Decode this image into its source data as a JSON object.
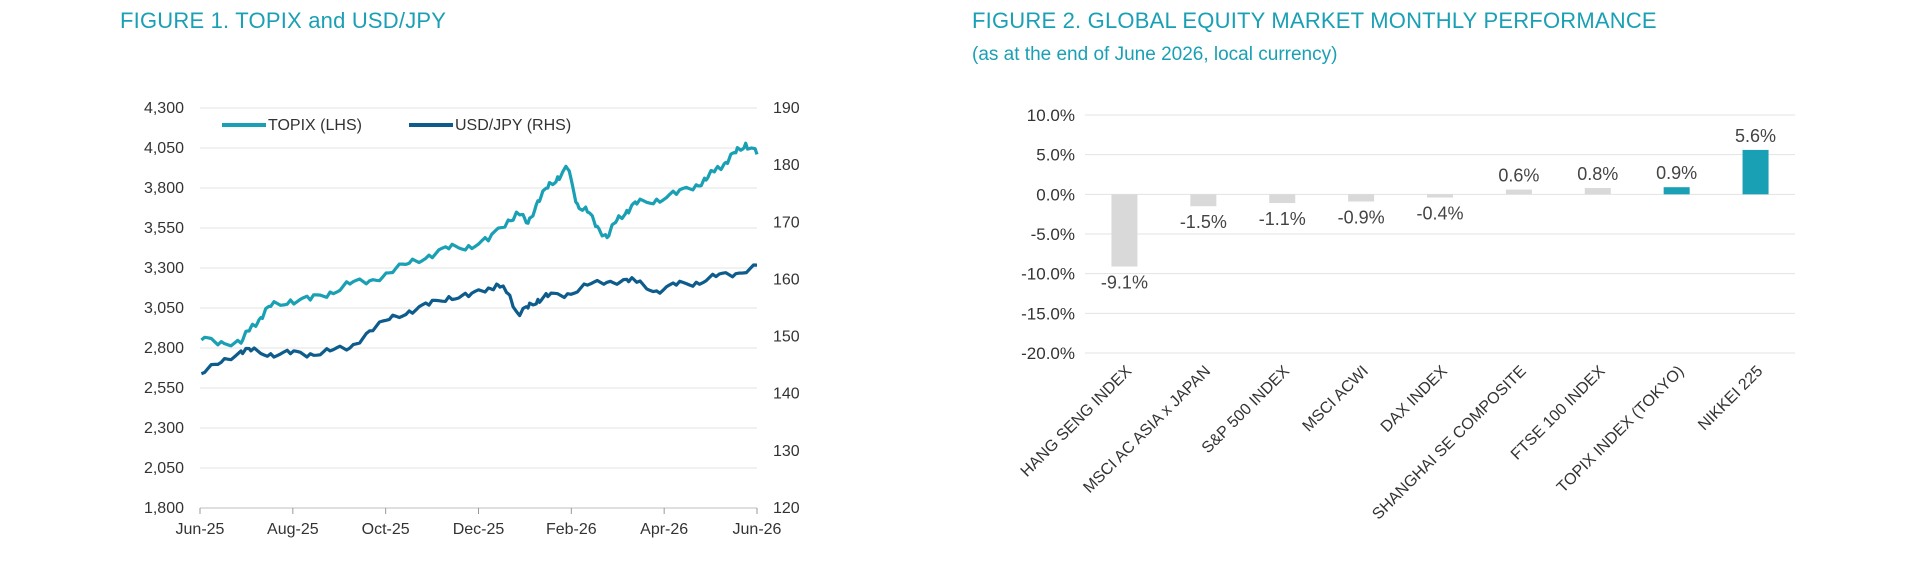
{
  "figure1": {
    "title": "FIGURE 1. TOPIX and USD/JPY",
    "chart_data": {
      "type": "line",
      "title": "FIGURE 1. TOPIX and USD/JPY",
      "x_ticks": [
        "Jun-25",
        "Aug-25",
        "Oct-25",
        "Dec-25",
        "Feb-26",
        "Apr-26",
        "Jun-26"
      ],
      "y_left_ticks": [
        "4,300",
        "4,050",
        "3,800",
        "3,550",
        "3,300",
        "3,050",
        "2,800",
        "2,550",
        "2,300",
        "2,050",
        "1,800"
      ],
      "y_right_ticks": [
        "190",
        "180",
        "170",
        "160",
        "150",
        "140",
        "130",
        "120"
      ],
      "ylim_left": [
        1800,
        4300
      ],
      "ylim_right": [
        120,
        190
      ],
      "xlim": [
        "2025-06",
        "2026-06"
      ],
      "grid": "horizontal",
      "legend_position": "top-left",
      "series": [
        {
          "name": "TOPIX (LHS)",
          "axis": "left",
          "color": "#1aa0b4",
          "x": [
            "2025-06-02",
            "2025-06-16",
            "2025-06-30",
            "2025-07-07",
            "2025-07-14",
            "2025-07-21",
            "2025-08-04",
            "2025-08-18",
            "2025-09-01",
            "2025-09-15",
            "2025-09-29",
            "2025-10-13",
            "2025-10-27",
            "2025-11-10",
            "2025-11-24",
            "2025-12-08",
            "2025-12-22",
            "2026-01-05",
            "2026-01-12",
            "2026-01-19",
            "2026-01-26",
            "2026-02-02",
            "2026-02-09",
            "2026-02-16",
            "2026-02-23",
            "2026-03-02",
            "2026-03-09",
            "2026-03-16",
            "2026-03-23",
            "2026-03-30",
            "2026-04-06",
            "2026-04-20",
            "2026-05-04",
            "2026-05-18",
            "2026-05-25",
            "2026-06-01",
            "2026-06-08",
            "2026-06-15",
            "2026-06-22",
            "2026-06-30"
          ],
          "values": [
            2850,
            2840,
            2830,
            2930,
            2990,
            3060,
            3100,
            3100,
            3150,
            3200,
            3220,
            3270,
            3330,
            3380,
            3420,
            3440,
            3470,
            3600,
            3640,
            3580,
            3720,
            3800,
            3870,
            3920,
            3700,
            3650,
            3560,
            3490,
            3600,
            3660,
            3700,
            3730,
            3760,
            3820,
            3850,
            3920,
            3960,
            4020,
            4080,
            4010
          ]
        },
        {
          "name": "USD/JPY (RHS)",
          "axis": "right",
          "color": "#0d5c8c",
          "x": [
            "2025-06-02",
            "2025-06-16",
            "2025-06-30",
            "2025-07-07",
            "2025-07-21",
            "2025-08-04",
            "2025-08-18",
            "2025-09-01",
            "2025-09-15",
            "2025-09-29",
            "2025-10-13",
            "2025-10-27",
            "2025-11-10",
            "2025-11-24",
            "2025-12-08",
            "2025-12-22",
            "2025-12-29",
            "2026-01-05",
            "2026-01-12",
            "2026-01-19",
            "2026-01-26",
            "2026-02-02",
            "2026-02-16",
            "2026-03-02",
            "2026-03-16",
            "2026-03-30",
            "2026-04-06",
            "2026-04-20",
            "2026-05-04",
            "2026-05-18",
            "2026-06-01",
            "2026-06-15",
            "2026-06-30"
          ],
          "values": [
            143.5,
            145.5,
            147.5,
            147.5,
            147.0,
            147.0,
            147.0,
            147.5,
            148.0,
            151.0,
            153.0,
            154.5,
            155.5,
            157.0,
            157.0,
            158.5,
            159.0,
            157.5,
            154.0,
            155.0,
            156.5,
            157.0,
            157.5,
            159.0,
            159.5,
            160.0,
            159.5,
            158.0,
            159.0,
            159.5,
            160.5,
            161.0,
            162.5
          ]
        }
      ]
    }
  },
  "figure2": {
    "title": "FIGURE 2. GLOBAL EQUITY MARKET MONTHLY PERFORMANCE",
    "subtitle": "(as at the end of June 2026, local currency)",
    "chart_data": {
      "type": "bar",
      "title": "FIGURE 2. GLOBAL EQUITY MARKET MONTHLY PERFORMANCE",
      "subtitle": "(as at the end of June 2026, local currency)",
      "categories": [
        "HANG SENG INDEX",
        "MSCI AC ASIA x JAPAN",
        "S&P 500 INDEX",
        "MSCI ACWI",
        "DAX INDEX",
        "SHANGHAI SE COMPOSITE",
        "FTSE 100 INDEX",
        "TOPIX INDEX (TOKYO)",
        "NIKKEI 225"
      ],
      "values": [
        -9.1,
        -1.5,
        -1.1,
        -0.9,
        -0.4,
        0.6,
        0.8,
        0.9,
        5.6
      ],
      "value_labels": [
        "-9.1%",
        "-1.5%",
        "-1.1%",
        "-0.9%",
        "-0.4%",
        "0.6%",
        "0.8%",
        "0.9%",
        "5.6%"
      ],
      "highlighted": [
        false,
        false,
        false,
        false,
        false,
        false,
        false,
        true,
        true
      ],
      "colors": {
        "default": "#d9d9d9",
        "highlight": "#1aa0b4"
      },
      "y_ticks": [
        "10.0%",
        "5.0%",
        "0.0%",
        "-5.0%",
        "-10.0%",
        "-15.0%",
        "-20.0%"
      ],
      "ylim": [
        -20,
        10
      ],
      "grid": "horizontal"
    }
  }
}
